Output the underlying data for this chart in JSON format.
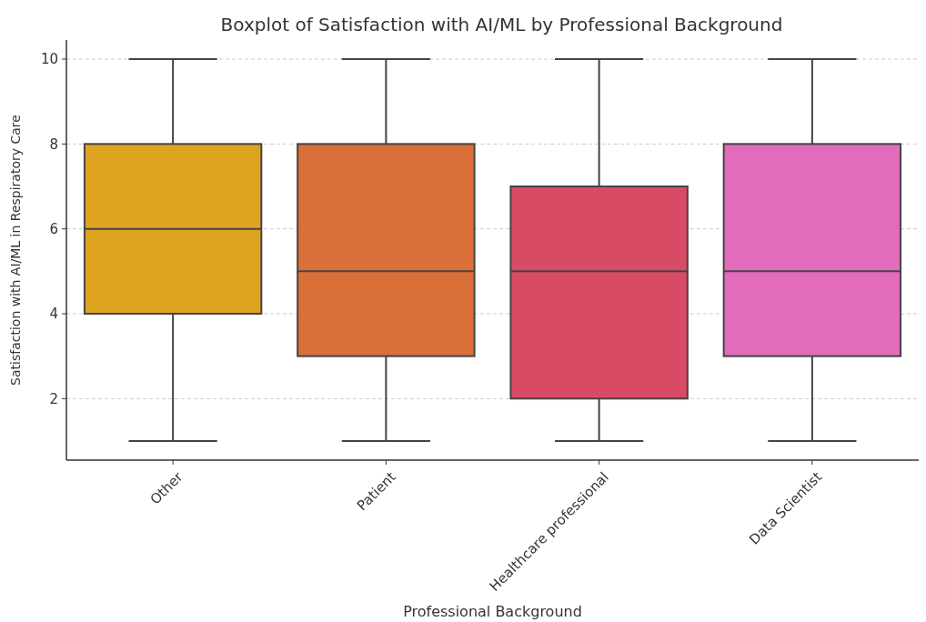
{
  "chart_data": {
    "type": "box",
    "title": "Boxplot of Satisfaction with AI/ML by Professional Background",
    "xlabel": "Professional Background",
    "ylabel": "Satisfaction with AI/ML in Respiratory Care",
    "categories": [
      "Other",
      "Patient",
      "Healthcare professional",
      "Data Scientist"
    ],
    "colors": [
      "#dea321",
      "#d9703a",
      "#d94a64",
      "#e26bbb"
    ],
    "boxes": [
      {
        "low": 1,
        "q1": 4,
        "median": 6,
        "q3": 8,
        "high": 10
      },
      {
        "low": 1,
        "q1": 3,
        "median": 5,
        "q3": 8,
        "high": 10
      },
      {
        "low": 1,
        "q1": 2,
        "median": 5,
        "q3": 7,
        "high": 10
      },
      {
        "low": 1,
        "q1": 3,
        "median": 5,
        "q3": 8,
        "high": 10
      }
    ],
    "ylim": [
      0.55,
      10.45
    ],
    "yticks": [
      2,
      4,
      6,
      8,
      10
    ],
    "grid": "y"
  }
}
